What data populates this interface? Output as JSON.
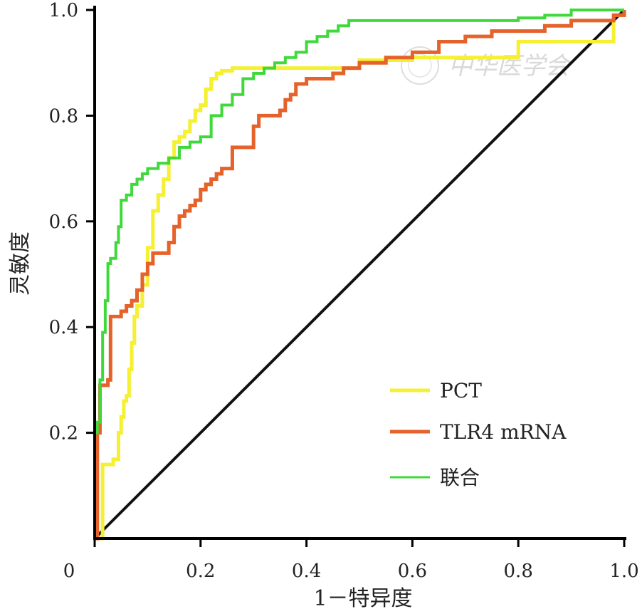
{
  "chart_data": {
    "type": "line",
    "title": "",
    "xlabel": "1－特异度",
    "ylabel": "灵敏度",
    "xlim": [
      0,
      1
    ],
    "ylim": [
      0,
      1
    ],
    "xticks": [
      "0",
      "0.2",
      "0.4",
      "0.6",
      "0.8",
      "1.0"
    ],
    "xtick_values": [
      0,
      0.2,
      0.4,
      0.6,
      0.8,
      1.0
    ],
    "yticks": [
      "0.2",
      "0.4",
      "0.6",
      "0.8",
      "1.0"
    ],
    "ytick_values": [
      0.2,
      0.4,
      0.6,
      0.8,
      1.0
    ],
    "grid": false,
    "legend_position": "bottom-right",
    "watermark": "中华医学会",
    "reference_line": {
      "x": [
        0,
        1
      ],
      "y": [
        0,
        1
      ],
      "color": "#111111"
    },
    "series": [
      {
        "name": "PCT",
        "color": "#f5f031",
        "x": [
          0.005,
          0.015,
          0.015,
          0.025,
          0.035,
          0.045,
          0.05,
          0.055,
          0.06,
          0.065,
          0.07,
          0.075,
          0.08,
          0.09,
          0.1,
          0.11,
          0.12,
          0.13,
          0.14,
          0.15,
          0.16,
          0.17,
          0.18,
          0.19,
          0.2,
          0.21,
          0.22,
          0.23,
          0.24,
          0.26,
          0.3,
          0.35,
          0.4,
          0.45,
          0.5,
          0.6,
          0.7,
          0.8,
          0.8,
          0.9,
          0.98,
          0.98,
          1.0
        ],
        "y": [
          0,
          0.0,
          0.14,
          0.14,
          0.15,
          0.2,
          0.23,
          0.26,
          0.27,
          0.32,
          0.37,
          0.42,
          0.44,
          0.48,
          0.55,
          0.62,
          0.65,
          0.68,
          0.72,
          0.75,
          0.76,
          0.77,
          0.79,
          0.81,
          0.82,
          0.85,
          0.87,
          0.88,
          0.885,
          0.89,
          0.89,
          0.89,
          0.89,
          0.89,
          0.905,
          0.91,
          0.91,
          0.91,
          0.94,
          0.94,
          0.94,
          0.99,
          1.0
        ]
      },
      {
        "name": "TLR4 mRNA",
        "color": "#e5622a",
        "x": [
          0,
          0.005,
          0.01,
          0.015,
          0.025,
          0.03,
          0.035,
          0.05,
          0.06,
          0.07,
          0.08,
          0.09,
          0.1,
          0.11,
          0.12,
          0.13,
          0.14,
          0.15,
          0.16,
          0.17,
          0.18,
          0.19,
          0.2,
          0.21,
          0.22,
          0.23,
          0.24,
          0.26,
          0.28,
          0.3,
          0.31,
          0.32,
          0.35,
          0.36,
          0.37,
          0.38,
          0.4,
          0.42,
          0.45,
          0.47,
          0.5,
          0.55,
          0.6,
          0.65,
          0.7,
          0.75,
          0.8,
          0.85,
          0.9,
          0.95,
          0.98,
          1.0
        ],
        "y": [
          0,
          0.2,
          0.29,
          0.29,
          0.3,
          0.42,
          0.42,
          0.43,
          0.44,
          0.45,
          0.47,
          0.5,
          0.52,
          0.54,
          0.54,
          0.54,
          0.56,
          0.59,
          0.61,
          0.62,
          0.63,
          0.64,
          0.66,
          0.67,
          0.68,
          0.69,
          0.7,
          0.74,
          0.74,
          0.78,
          0.8,
          0.8,
          0.81,
          0.83,
          0.84,
          0.86,
          0.87,
          0.87,
          0.88,
          0.89,
          0.9,
          0.91,
          0.92,
          0.94,
          0.95,
          0.96,
          0.96,
          0.97,
          0.98,
          0.98,
          0.99,
          1.0
        ]
      },
      {
        "name": "联合",
        "color": "#3fd93b",
        "x": [
          0,
          0.005,
          0.01,
          0.015,
          0.02,
          0.025,
          0.03,
          0.04,
          0.045,
          0.05,
          0.06,
          0.07,
          0.08,
          0.09,
          0.1,
          0.12,
          0.14,
          0.16,
          0.18,
          0.2,
          0.22,
          0.24,
          0.26,
          0.28,
          0.3,
          0.32,
          0.34,
          0.36,
          0.38,
          0.4,
          0.42,
          0.44,
          0.46,
          0.48,
          0.5,
          0.6,
          0.7,
          0.8,
          0.85,
          0.9,
          0.95,
          1.0
        ],
        "y": [
          0.2,
          0.22,
          0.3,
          0.39,
          0.45,
          0.52,
          0.53,
          0.56,
          0.59,
          0.64,
          0.65,
          0.67,
          0.68,
          0.69,
          0.7,
          0.71,
          0.72,
          0.74,
          0.75,
          0.76,
          0.8,
          0.82,
          0.84,
          0.87,
          0.88,
          0.89,
          0.9,
          0.91,
          0.92,
          0.94,
          0.95,
          0.96,
          0.97,
          0.98,
          0.98,
          0.98,
          0.98,
          0.985,
          0.99,
          1.0,
          1.0,
          1.0
        ]
      }
    ]
  }
}
